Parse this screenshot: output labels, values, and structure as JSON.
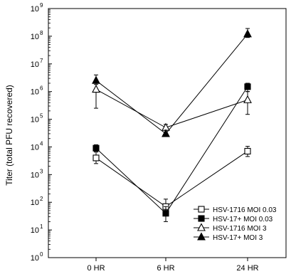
{
  "chart_data": {
    "type": "line",
    "title": "",
    "xlabel": "",
    "ylabel": "Titer  (total  PFU  recovered)",
    "yscale": "log",
    "ylim": [
      1,
      1000000000
    ],
    "y_tick_labels": [
      {
        "base": "10",
        "exp": "0"
      },
      {
        "base": "10",
        "exp": "1"
      },
      {
        "base": "10",
        "exp": "2"
      },
      {
        "base": "10",
        "exp": "3"
      },
      {
        "base": "10",
        "exp": "4"
      },
      {
        "base": "10",
        "exp": "5"
      },
      {
        "base": "10",
        "exp": "6"
      },
      {
        "base": "10",
        "exp": "7"
      },
      {
        "base": "10",
        "exp": "8"
      },
      {
        "base": "10",
        "exp": "9"
      }
    ],
    "categories": [
      "0 HR",
      "6 HR",
      "24 HR"
    ],
    "grid": false,
    "legend_position": "bottom-right",
    "series": [
      {
        "name": "HSV-1716 MOI 0.03",
        "marker": "square-open",
        "values": [
          4000,
          70,
          7000
        ],
        "err_low": [
          2500,
          40,
          4500
        ],
        "err_high": [
          6500,
          130,
          10500
        ]
      },
      {
        "name": "HSV-17+ MOI 0.03",
        "marker": "square-filled",
        "values": [
          9000,
          40,
          1500000
        ],
        "err_low": [
          7000,
          20,
          1000000
        ],
        "err_high": [
          12000,
          70,
          2000000
        ]
      },
      {
        "name": "HSV-1716 MOI 3",
        "marker": "triangle-open",
        "values": [
          1200000,
          50000,
          500000
        ],
        "err_low": [
          250000,
          40000,
          150000
        ],
        "err_high": [
          2300000,
          65000,
          1000000
        ]
      },
      {
        "name": "HSV-17+ MOI 3",
        "marker": "triangle-filled",
        "values": [
          2500000,
          30000,
          120000000
        ],
        "err_low": [
          1800000,
          25000,
          90000000
        ],
        "err_high": [
          4000000,
          40000,
          190000000
        ]
      }
    ]
  }
}
